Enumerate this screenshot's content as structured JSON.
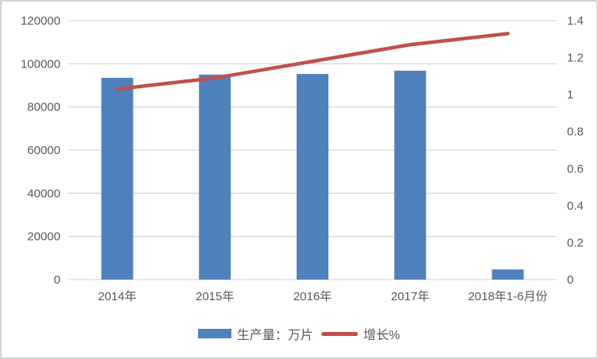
{
  "chart_data": {
    "type": "bar",
    "subtype": "bar-line-combo",
    "title": "",
    "categories": [
      "2014年",
      "2015年",
      "2016年",
      "2017年",
      "2018年1-6月份"
    ],
    "series": [
      {
        "name": "生产量：万片",
        "type": "bar",
        "axis": "left",
        "color": "#4f81bd",
        "values": [
          93500,
          95000,
          95300,
          96800,
          4700
        ]
      },
      {
        "name": "增长%",
        "type": "line",
        "axis": "right",
        "color": "#c0504d",
        "values": [
          1.03,
          1.09,
          1.18,
          1.27,
          1.33
        ]
      }
    ],
    "left_axis": {
      "min": 0,
      "max": 120000,
      "step": 20000,
      "tick_labels": [
        "120000",
        "100000",
        "80000",
        "60000",
        "40000",
        "20000",
        "0"
      ]
    },
    "right_axis": {
      "min": 0,
      "max": 1.4,
      "step": 0.2,
      "tick_labels": [
        "1.4",
        "1.2",
        "1",
        "0.8",
        "0.6",
        "0.4",
        "0.2",
        "0"
      ]
    },
    "grid": true,
    "legend_position": "bottom",
    "colors": {
      "gridline": "#d9d9d9",
      "axis_text": "#595959",
      "frame_border": "#d3d3d3",
      "background": "#ffffff"
    }
  }
}
